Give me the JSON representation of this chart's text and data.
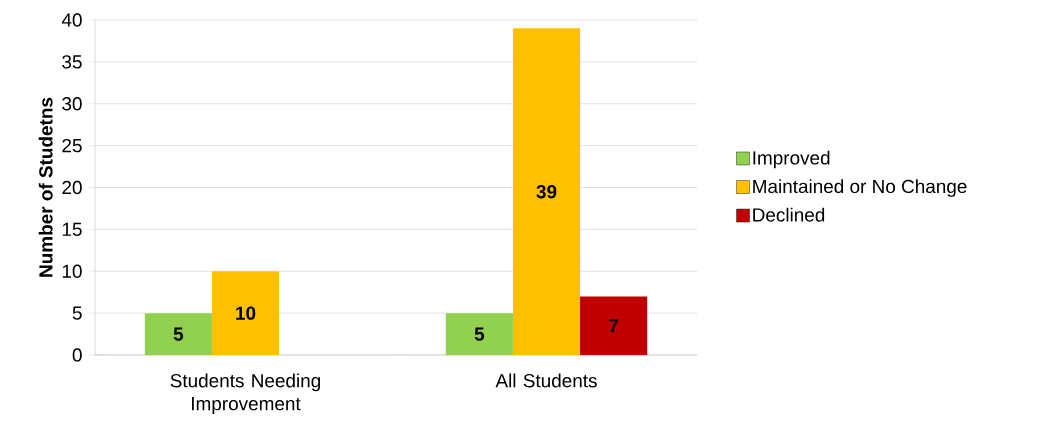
{
  "chart_data": {
    "type": "bar",
    "ylabel": "Number of Studetns",
    "categories": [
      "Students Needing Improvement",
      "All Students"
    ],
    "series": [
      {
        "name": "Improved",
        "color": "#92d050",
        "values": [
          5,
          5
        ]
      },
      {
        "name": "Maintained or No Change",
        "color": "#ffc000",
        "values": [
          10,
          39
        ]
      },
      {
        "name": "Declined",
        "color": "#c00000",
        "values": [
          null,
          7
        ]
      }
    ],
    "ylim": [
      0,
      40
    ],
    "yticks": [
      0,
      5,
      10,
      15,
      20,
      25,
      30,
      35,
      40
    ],
    "grid": "y",
    "legend": "right",
    "data_labels": true
  }
}
